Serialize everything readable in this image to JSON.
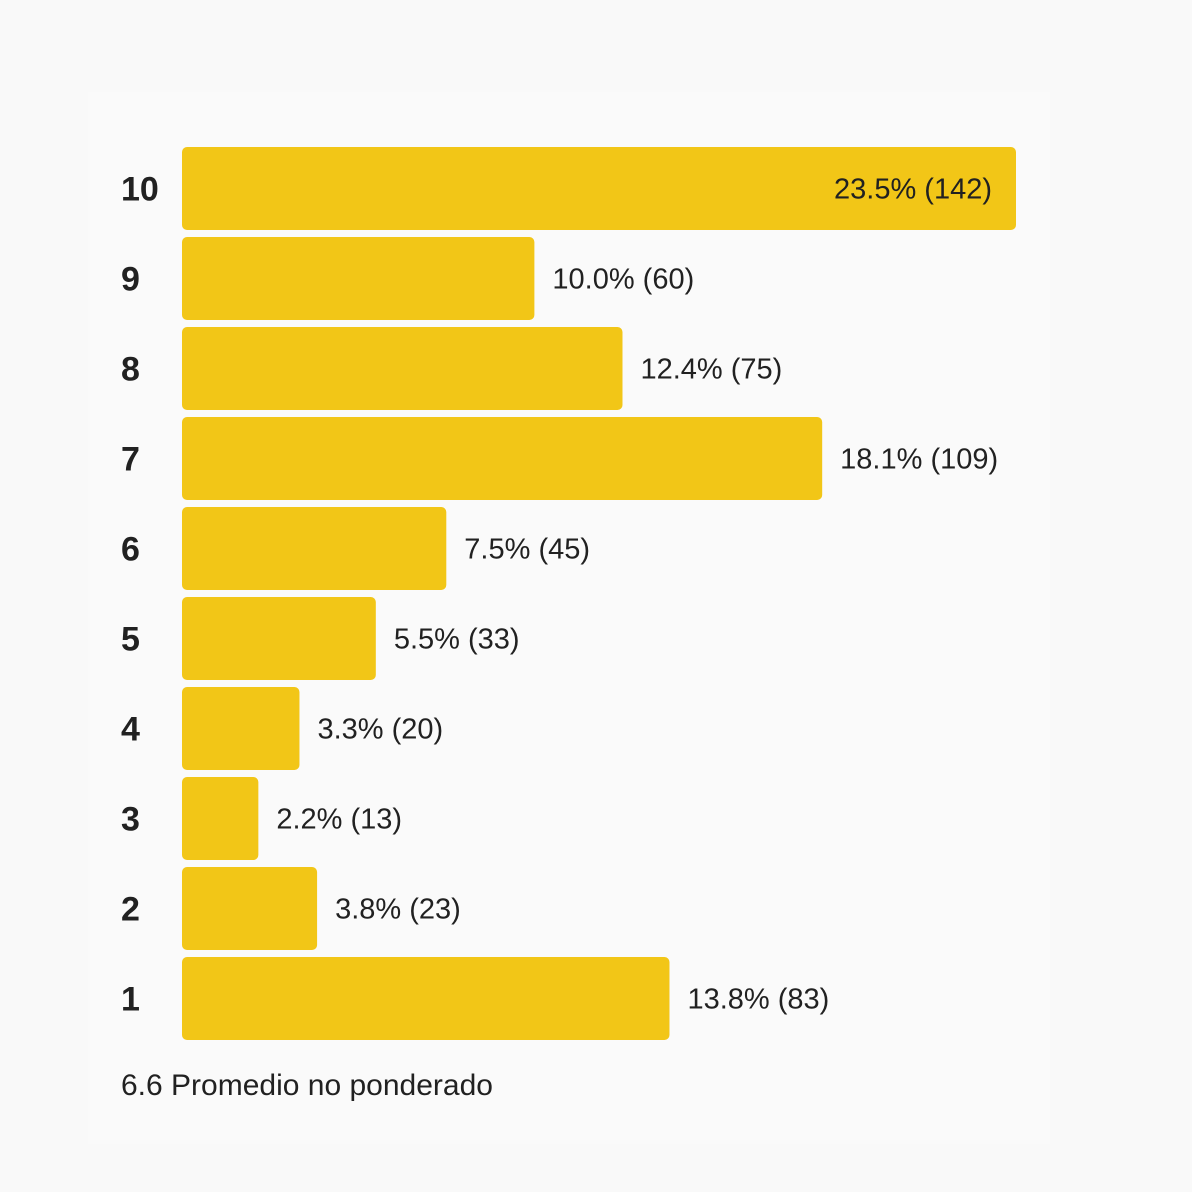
{
  "chart_data": {
    "type": "bar",
    "orientation": "horizontal",
    "categories": [
      "10",
      "9",
      "8",
      "7",
      "6",
      "5",
      "4",
      "3",
      "2",
      "1"
    ],
    "percent_labels": [
      "23.5%",
      "10.0%",
      "12.4%",
      "18.1%",
      "7.5%",
      "5.5%",
      "3.3%",
      "2.2%",
      "3.8%",
      "13.8%"
    ],
    "counts": [
      142,
      60,
      75,
      109,
      45,
      33,
      20,
      13,
      23,
      83
    ],
    "percents": [
      23.5,
      10.0,
      12.4,
      18.1,
      7.5,
      5.5,
      3.3,
      2.2,
      3.8,
      13.8
    ],
    "bar_color": "#f2c617",
    "legend": "none",
    "grid": false,
    "footer": "6.6 Promedio no ponderado"
  }
}
